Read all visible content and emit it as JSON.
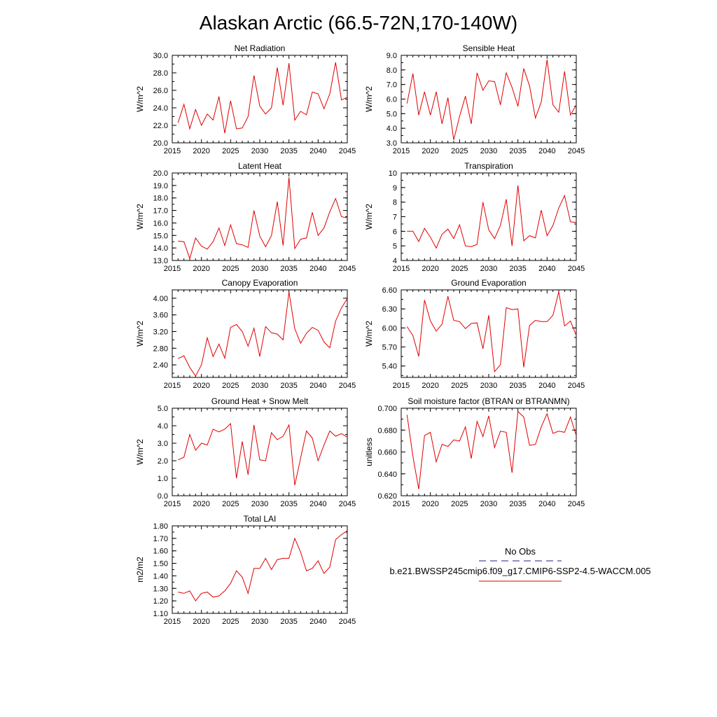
{
  "figure_title": "Alaskan Arctic (66.5-72N,170-140W)",
  "legend": {
    "obs_label": "No Obs",
    "obs_color": "#22228b",
    "model_label": "b.e21.BWSSP245cmip6.f09_g17.CMIP6-SSP2-4.5-WACCM.005",
    "model_color": "#e00000"
  },
  "chart_data": [
    {
      "type": "line",
      "title": "Net Radiation",
      "ylabel": "W/m^2",
      "xlim": [
        2015,
        2045
      ],
      "ylim": [
        20.0,
        30.0
      ],
      "xticks": [
        "2015",
        "2020",
        "2025",
        "2030",
        "2035",
        "2040",
        "2045"
      ],
      "yticks": [
        "20.0",
        "22.0",
        "24.0",
        "26.0",
        "28.0",
        "30.0"
      ],
      "series": [
        {
          "x": [
            2016,
            2017,
            2018,
            2019,
            2020,
            2021,
            2022,
            2023,
            2024,
            2025,
            2026,
            2027,
            2028,
            2029,
            2030,
            2031,
            2032,
            2033,
            2034,
            2035,
            2036,
            2037,
            2038,
            2039,
            2040,
            2041,
            2042,
            2043,
            2044,
            2045
          ],
          "values": [
            22.3,
            24.4,
            21.6,
            23.8,
            22.0,
            23.3,
            22.6,
            25.3,
            21.1,
            24.8,
            21.6,
            21.7,
            23.0,
            27.7,
            24.2,
            23.3,
            24.0,
            28.6,
            24.3,
            29.1,
            22.6,
            23.6,
            23.2,
            25.8,
            25.6,
            23.9,
            25.6,
            29.2,
            24.9,
            25.2
          ]
        }
      ]
    },
    {
      "type": "line",
      "title": "Sensible Heat",
      "ylabel": "W/m^2",
      "xlim": [
        2015,
        2045
      ],
      "ylim": [
        3.0,
        9.0
      ],
      "xticks": [
        "2015",
        "2020",
        "2025",
        "2030",
        "2035",
        "2040",
        "2045"
      ],
      "yticks": [
        "3.0",
        "4.0",
        "5.0",
        "6.0",
        "7.0",
        "8.0",
        "9.0"
      ],
      "series": [
        {
          "x": [
            2016,
            2017,
            2018,
            2019,
            2020,
            2021,
            2022,
            2023,
            2024,
            2025,
            2026,
            2027,
            2028,
            2029,
            2030,
            2031,
            2032,
            2033,
            2034,
            2035,
            2036,
            2037,
            2038,
            2039,
            2040,
            2041,
            2042,
            2043,
            2044,
            2045
          ],
          "values": [
            5.7,
            7.75,
            4.9,
            6.5,
            4.9,
            6.5,
            4.3,
            6.1,
            3.2,
            4.8,
            6.2,
            4.3,
            7.8,
            6.6,
            7.25,
            7.2,
            5.6,
            7.8,
            6.8,
            5.5,
            8.1,
            6.9,
            4.7,
            5.8,
            8.7,
            5.6,
            5.1,
            7.9,
            4.9,
            5.6
          ]
        }
      ]
    },
    {
      "type": "line",
      "title": "Latent Heat",
      "ylabel": "W/m^2",
      "xlim": [
        2015,
        2045
      ],
      "ylim": [
        13.0,
        20.0
      ],
      "xticks": [
        "2015",
        "2020",
        "2025",
        "2030",
        "2035",
        "2040",
        "2045"
      ],
      "yticks": [
        "13.0",
        "14.0",
        "15.0",
        "16.0",
        "17.0",
        "18.0",
        "19.0",
        "20.0"
      ],
      "series": [
        {
          "x": [
            2016,
            2017,
            2018,
            2019,
            2020,
            2021,
            2022,
            2023,
            2024,
            2025,
            2026,
            2027,
            2028,
            2029,
            2030,
            2031,
            2032,
            2033,
            2034,
            2035,
            2036,
            2037,
            2038,
            2039,
            2040,
            2041,
            2042,
            2043,
            2044,
            2045
          ],
          "values": [
            14.55,
            14.5,
            13.15,
            14.8,
            14.15,
            13.9,
            14.5,
            15.6,
            14.2,
            15.85,
            14.35,
            14.25,
            14.05,
            17.0,
            14.95,
            14.1,
            15.0,
            17.7,
            14.2,
            19.65,
            13.95,
            14.7,
            14.8,
            16.85,
            15.0,
            15.6,
            16.9,
            17.95,
            16.5,
            16.4
          ]
        }
      ]
    },
    {
      "type": "line",
      "title": "Transpiration",
      "ylabel": "W/m^2",
      "xlim": [
        2015,
        2045
      ],
      "ylim": [
        4,
        10
      ],
      "xticks": [
        "2015",
        "2020",
        "2025",
        "2030",
        "2035",
        "2040",
        "2045"
      ],
      "yticks": [
        "4",
        "5",
        "6",
        "7",
        "8",
        "9",
        "10"
      ],
      "series": [
        {
          "x": [
            2016,
            2017,
            2018,
            2019,
            2020,
            2021,
            2022,
            2023,
            2024,
            2025,
            2026,
            2027,
            2028,
            2029,
            2030,
            2031,
            2032,
            2033,
            2034,
            2035,
            2036,
            2037,
            2038,
            2039,
            2040,
            2041,
            2042,
            2043,
            2044,
            2045
          ],
          "values": [
            6.0,
            6.0,
            5.3,
            6.2,
            5.6,
            4.85,
            5.8,
            6.15,
            5.5,
            6.45,
            5.0,
            4.95,
            5.1,
            8.0,
            6.1,
            5.5,
            6.4,
            8.2,
            5.0,
            9.15,
            5.35,
            5.7,
            5.55,
            7.45,
            5.7,
            6.4,
            7.6,
            8.45,
            6.65,
            6.6
          ]
        }
      ]
    },
    {
      "type": "line",
      "title": "Canopy Evaporation",
      "ylabel": "W/m^2",
      "xlim": [
        2015,
        2045
      ],
      "ylim": [
        2.1,
        4.2
      ],
      "xticks": [
        "2015",
        "2020",
        "2025",
        "2030",
        "2035",
        "2040",
        "2045"
      ],
      "yticks": [
        "2.40",
        "2.80",
        "3.20",
        "3.60",
        "4.00"
      ],
      "series": [
        {
          "x": [
            2016,
            2017,
            2018,
            2019,
            2020,
            2021,
            2022,
            2023,
            2024,
            2025,
            2026,
            2027,
            2028,
            2029,
            2030,
            2031,
            2032,
            2033,
            2034,
            2035,
            2036,
            2037,
            2038,
            2039,
            2040,
            2041,
            2042,
            2043,
            2044,
            2045
          ],
          "values": [
            2.55,
            2.62,
            2.34,
            2.13,
            2.4,
            3.05,
            2.6,
            2.9,
            2.56,
            3.3,
            3.37,
            3.2,
            2.85,
            3.28,
            2.6,
            3.32,
            3.17,
            3.14,
            3.0,
            4.15,
            3.27,
            2.92,
            3.16,
            3.3,
            3.23,
            2.95,
            2.81,
            3.45,
            3.77,
            3.99
          ]
        }
      ]
    },
    {
      "type": "line",
      "title": "Ground Evaporation",
      "ylabel": "W/m^2",
      "xlim": [
        2015,
        2045
      ],
      "ylim": [
        5.22,
        6.6
      ],
      "xticks": [
        "2015",
        "2020",
        "2025",
        "2030",
        "2035",
        "2040",
        "2045"
      ],
      "yticks": [
        "5.40",
        "5.70",
        "6.00",
        "6.30",
        "6.60"
      ],
      "series": [
        {
          "x": [
            2016,
            2017,
            2018,
            2019,
            2020,
            2021,
            2022,
            2023,
            2024,
            2025,
            2026,
            2027,
            2028,
            2029,
            2030,
            2031,
            2032,
            2033,
            2034,
            2035,
            2036,
            2037,
            2038,
            2039,
            2040,
            2041,
            2042,
            2043,
            2044,
            2045
          ],
          "values": [
            6.02,
            5.88,
            5.55,
            6.44,
            6.11,
            5.95,
            6.06,
            6.5,
            6.12,
            6.1,
            5.99,
            6.07,
            6.08,
            5.67,
            6.2,
            5.31,
            5.42,
            6.32,
            6.29,
            6.3,
            5.38,
            6.04,
            6.12,
            6.1,
            6.1,
            6.2,
            6.57,
            6.03,
            6.11,
            5.88
          ]
        }
      ]
    },
    {
      "type": "line",
      "title": "Ground Heat + Snow Melt",
      "ylabel": "W/m^2",
      "xlim": [
        2015,
        2045
      ],
      "ylim": [
        0.0,
        5.0
      ],
      "xticks": [
        "2015",
        "2020",
        "2025",
        "2030",
        "2035",
        "2040",
        "2045"
      ],
      "yticks": [
        "0.0",
        "1.0",
        "2.0",
        "3.0",
        "4.0",
        "5.0"
      ],
      "series": [
        {
          "x": [
            2016,
            2017,
            2018,
            2019,
            2020,
            2021,
            2022,
            2023,
            2024,
            2025,
            2026,
            2027,
            2028,
            2029,
            2030,
            2031,
            2032,
            2033,
            2034,
            2035,
            2036,
            2037,
            2038,
            2039,
            2040,
            2041,
            2042,
            2043,
            2044,
            2045
          ],
          "values": [
            2.05,
            2.2,
            3.5,
            2.6,
            3.0,
            2.9,
            3.8,
            3.65,
            3.8,
            4.12,
            1.0,
            3.1,
            1.2,
            4.05,
            2.05,
            2.0,
            3.6,
            3.2,
            3.4,
            4.05,
            0.6,
            2.15,
            3.7,
            3.3,
            2.0,
            2.9,
            3.7,
            3.4,
            3.55,
            3.35
          ]
        }
      ]
    },
    {
      "type": "line",
      "title": "Soil moisture factor (BTRAN or BTRANMN)",
      "ylabel": "unitless",
      "xlim": [
        2015,
        2045
      ],
      "ylim": [
        0.62,
        0.7
      ],
      "xticks": [
        "2015",
        "2020",
        "2025",
        "2030",
        "2035",
        "2040",
        "2045"
      ],
      "yticks": [
        "0.620",
        "0.640",
        "0.660",
        "0.680",
        "0.700"
      ],
      "series": [
        {
          "x": [
            2016,
            2017,
            2018,
            2019,
            2020,
            2021,
            2022,
            2023,
            2024,
            2025,
            2026,
            2027,
            2028,
            2029,
            2030,
            2031,
            2032,
            2033,
            2034,
            2035,
            2036,
            2037,
            2038,
            2039,
            2040,
            2041,
            2042,
            2043,
            2044,
            2045
          ],
          "values": [
            0.694,
            0.656,
            0.626,
            0.675,
            0.678,
            0.651,
            0.667,
            0.665,
            0.671,
            0.67,
            0.683,
            0.654,
            0.688,
            0.674,
            0.693,
            0.664,
            0.679,
            0.678,
            0.641,
            0.697,
            0.692,
            0.666,
            0.667,
            0.683,
            0.695,
            0.677,
            0.679,
            0.678,
            0.692,
            0.675
          ]
        }
      ]
    },
    {
      "type": "line",
      "title": "Total LAI",
      "ylabel": "m2/m2",
      "xlim": [
        2015,
        2045
      ],
      "ylim": [
        1.1,
        1.8
      ],
      "xticks": [
        "2015",
        "2020",
        "2025",
        "2030",
        "2035",
        "2040",
        "2045"
      ],
      "yticks": [
        "1.10",
        "1.20",
        "1.30",
        "1.40",
        "1.50",
        "1.60",
        "1.70",
        "1.80"
      ],
      "series": [
        {
          "x": [
            2016,
            2017,
            2018,
            2019,
            2020,
            2021,
            2022,
            2023,
            2024,
            2025,
            2026,
            2027,
            2028,
            2029,
            2030,
            2031,
            2032,
            2033,
            2034,
            2035,
            2036,
            2037,
            2038,
            2039,
            2040,
            2041,
            2042,
            2043,
            2044,
            2045
          ],
          "values": [
            1.27,
            1.26,
            1.28,
            1.2,
            1.26,
            1.27,
            1.23,
            1.24,
            1.28,
            1.34,
            1.44,
            1.39,
            1.26,
            1.46,
            1.46,
            1.54,
            1.45,
            1.53,
            1.54,
            1.54,
            1.7,
            1.59,
            1.44,
            1.46,
            1.52,
            1.42,
            1.47,
            1.69,
            1.73,
            1.76
          ]
        }
      ]
    }
  ]
}
